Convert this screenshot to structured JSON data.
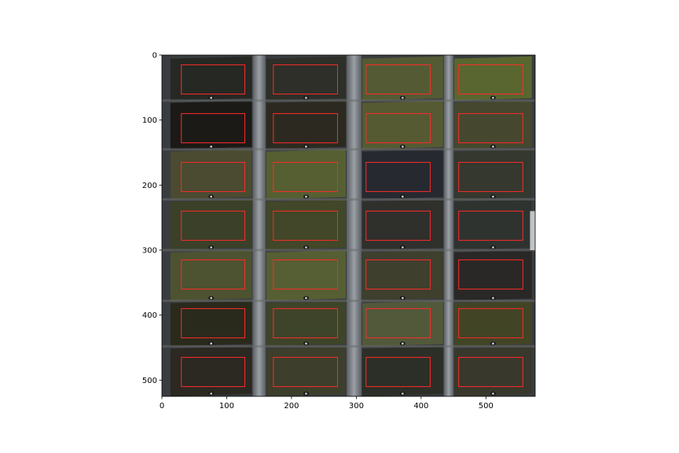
{
  "figure": {
    "title": "",
    "xlabel": "",
    "ylabel": ""
  },
  "axes": {
    "xlim": [
      0,
      576
    ],
    "ylim": [
      525,
      0
    ],
    "x_ticks": [
      "0",
      "100",
      "200",
      "300",
      "400",
      "500"
    ],
    "y_ticks": [
      "0",
      "100",
      "200",
      "300",
      "400",
      "500"
    ]
  },
  "image": {
    "description_colors": {
      "background": "#3a3d40",
      "strip_light": "#8a8e92"
    },
    "plot_columns_x": [
      [
        12,
        140
      ],
      [
        160,
        285
      ],
      [
        308,
        435
      ],
      [
        450,
        572
      ]
    ],
    "plot_rows_y": [
      [
        2,
        70
      ],
      [
        70,
        145
      ],
      [
        145,
        222
      ],
      [
        222,
        300
      ],
      [
        300,
        378
      ],
      [
        378,
        448
      ],
      [
        448,
        525
      ]
    ],
    "plot_colors": [
      [
        "#262823",
        "#2d2f28",
        "#545b34",
        "#59662f"
      ],
      [
        "#1c1a16",
        "#2c2a20",
        "#555a33",
        "#45482e"
      ],
      [
        "#4a4b30",
        "#555f31",
        "#262930",
        "#34382e"
      ],
      [
        "#3b4028",
        "#414728",
        "#2f2f2c",
        "#2f3330"
      ],
      [
        "#4d5230",
        "#565e33",
        "#3f3f2e",
        "#2a2826"
      ],
      [
        "#2a2a1c",
        "#3e4429",
        "#52593a",
        "#424426"
      ],
      [
        "#2c2822",
        "#3d3e2c",
        "#2c2f27",
        "#39382c"
      ]
    ]
  },
  "rois": {
    "color": "#ff2a2a",
    "boxes": [
      [
        30,
        15,
        128,
        60
      ],
      [
        172,
        15,
        271,
        60
      ],
      [
        315,
        15,
        414,
        60
      ],
      [
        458,
        15,
        557,
        60
      ],
      [
        30,
        90,
        128,
        135
      ],
      [
        172,
        90,
        271,
        135
      ],
      [
        315,
        90,
        414,
        135
      ],
      [
        458,
        90,
        557,
        135
      ],
      [
        30,
        165,
        128,
        210
      ],
      [
        172,
        165,
        271,
        210
      ],
      [
        315,
        165,
        414,
        210
      ],
      [
        458,
        165,
        557,
        210
      ],
      [
        30,
        240,
        128,
        285
      ],
      [
        172,
        240,
        271,
        285
      ],
      [
        315,
        240,
        414,
        285
      ],
      [
        458,
        240,
        557,
        285
      ],
      [
        30,
        315,
        128,
        360
      ],
      [
        172,
        315,
        271,
        360
      ],
      [
        315,
        315,
        414,
        360
      ],
      [
        458,
        315,
        557,
        360
      ],
      [
        30,
        390,
        128,
        435
      ],
      [
        172,
        390,
        271,
        435
      ],
      [
        315,
        390,
        414,
        435
      ],
      [
        458,
        390,
        557,
        435
      ],
      [
        30,
        465,
        128,
        510
      ],
      [
        172,
        465,
        271,
        510
      ],
      [
        315,
        465,
        414,
        510
      ],
      [
        458,
        465,
        557,
        510
      ]
    ]
  }
}
